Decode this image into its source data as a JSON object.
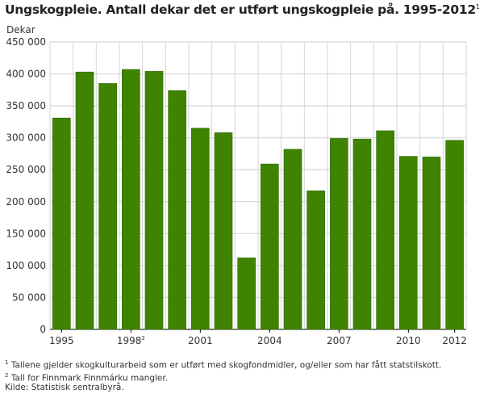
{
  "chart_data": {
    "type": "bar",
    "title": "Ungskogpleie. Antall dekar det er utført ungskogpleie på. 1995-2012",
    "title_footnote": "1",
    "ylabel": "Dekar",
    "xlabel": "",
    "ylim": [
      0,
      450000
    ],
    "yticks": [
      0,
      50000,
      100000,
      150000,
      200000,
      250000,
      300000,
      350000,
      400000,
      450000
    ],
    "ytick_labels": [
      "0",
      "50 000",
      "100 000",
      "150 000",
      "200 000",
      "250 000",
      "300 000",
      "350 000",
      "400 000",
      "450 000"
    ],
    "grid": true,
    "categories": [
      "1995",
      "1996",
      "1997",
      "1998",
      "1999",
      "2000",
      "2001",
      "2002",
      "2003",
      "2004",
      "2005",
      "2006",
      "2007",
      "2008",
      "2009",
      "2010",
      "2011",
      "2012"
    ],
    "xtick_labels": [
      {
        "category": "1995",
        "label": "1995",
        "sup": ""
      },
      {
        "category": "1998",
        "label": "1998",
        "sup": "2"
      },
      {
        "category": "2001",
        "label": "2001",
        "sup": ""
      },
      {
        "category": "2004",
        "label": "2004",
        "sup": ""
      },
      {
        "category": "2007",
        "label": "2007",
        "sup": ""
      },
      {
        "category": "2010",
        "label": "2010",
        "sup": ""
      },
      {
        "category": "2012",
        "label": "2012",
        "sup": ""
      }
    ],
    "values": [
      331000,
      403000,
      385000,
      407000,
      404000,
      374000,
      315000,
      308000,
      112000,
      259000,
      282000,
      217000,
      299000,
      298000,
      311000,
      271000,
      270000,
      296000
    ],
    "bar_color": "#3f8400"
  },
  "footnotes": [
    {
      "mark": "1",
      "text": "Tallene gjelder skogkulturarbeid som er utført med skogfondmidler, og/eller som har fått statstilskott."
    },
    {
      "mark": "2",
      "text": "Tall for  Finnmark Finnmárku mangler."
    }
  ],
  "source": "Kilde: Statistisk sentralbyrå."
}
